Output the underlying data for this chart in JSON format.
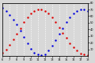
{
  "title": "",
  "background_color": "#d8d8d8",
  "grid_color": "#ffffff",
  "blue_series": {
    "x": [
      6,
      6.5,
      7,
      7.5,
      8,
      8.5,
      9,
      9.5,
      10,
      10.5,
      11,
      11.5,
      12,
      12.5,
      13,
      13.5,
      14,
      14.5,
      15,
      15.5,
      16,
      16.5,
      17,
      17.5,
      18
    ],
    "y": [
      72,
      68,
      62,
      55,
      47,
      38,
      28,
      19,
      11,
      5,
      2,
      1,
      3,
      8,
      15,
      24,
      33,
      42,
      51,
      58,
      64,
      68,
      70,
      70,
      68
    ],
    "color": "#0000dd"
  },
  "red_series": {
    "x": [
      6,
      6.5,
      7,
      7.5,
      8,
      8.5,
      9,
      9.5,
      10,
      10.5,
      11,
      11.5,
      12,
      12.5,
      13,
      13.5,
      14,
      14.5,
      15,
      15.5,
      16,
      16.5,
      17,
      17.5,
      18
    ],
    "y": [
      5,
      10,
      17,
      25,
      33,
      42,
      51,
      58,
      64,
      68,
      70,
      70,
      68,
      64,
      58,
      51,
      43,
      35,
      27,
      19,
      13,
      8,
      4,
      2,
      1
    ],
    "color": "#dd0000"
  },
  "ylim": [
    0,
    80
  ],
  "xlim": [
    6,
    18
  ],
  "yticks_right": [
    10,
    20,
    30,
    40,
    50,
    60,
    70,
    80
  ],
  "xtick_positions": [
    6,
    7,
    8,
    9,
    10,
    11,
    12,
    13,
    14,
    15,
    16,
    17,
    18
  ],
  "xtick_labels": [
    "6",
    "7",
    "8",
    "9",
    "10",
    "11",
    "12",
    "13",
    "14",
    "15",
    "16",
    "17",
    "18"
  ],
  "figsize": [
    1.2,
    0.8
  ],
  "dpi": 100
}
